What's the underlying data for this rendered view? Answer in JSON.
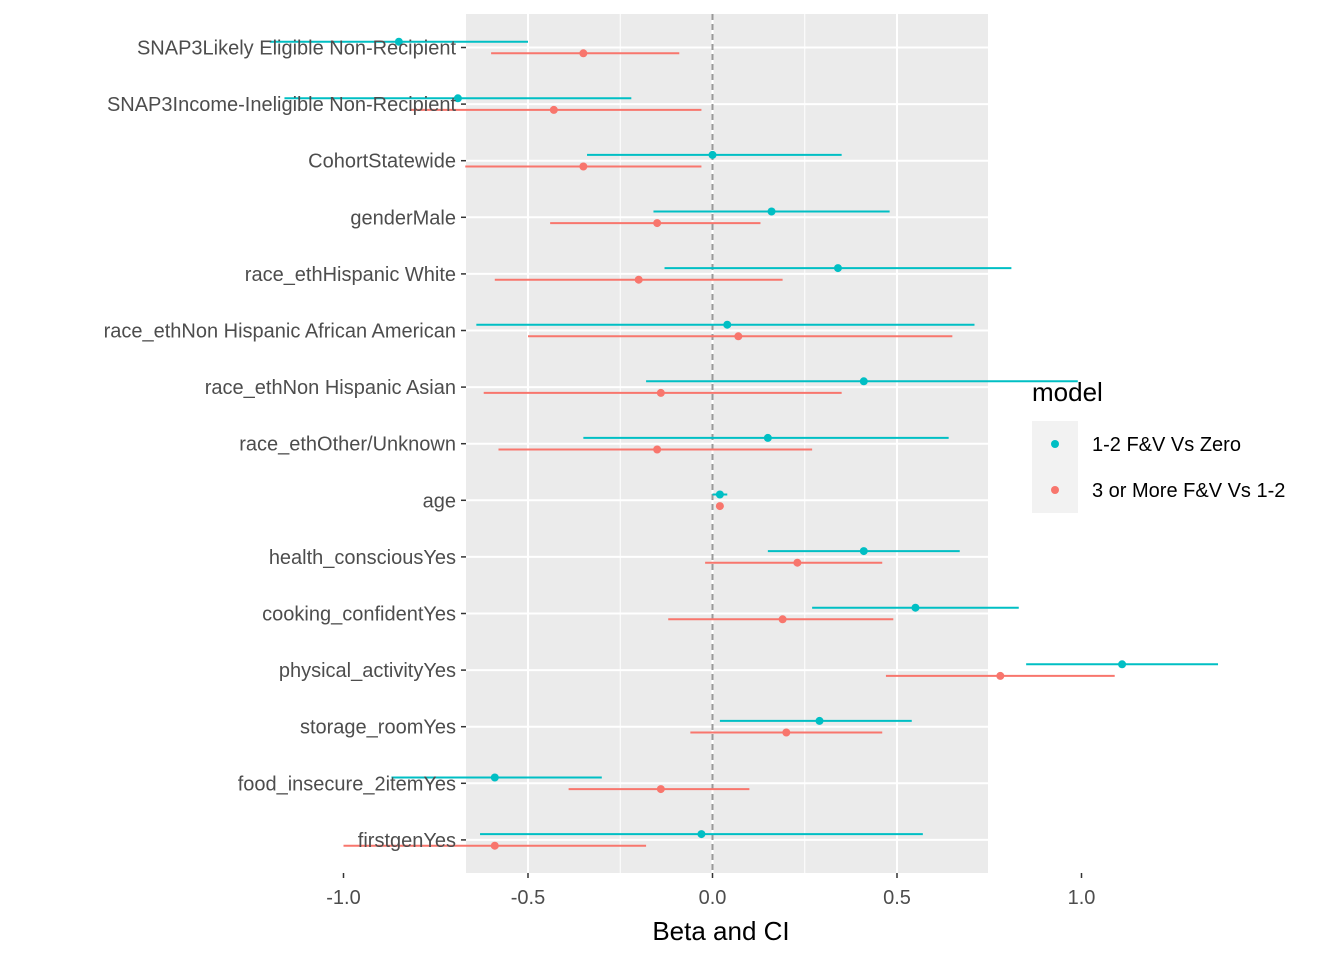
{
  "chart_data": {
    "type": "scatter",
    "xlabel": "Beta and CI",
    "ylabel": "",
    "xlim": [
      -1.33,
      1.48
    ],
    "x_ticks": [
      -1.0,
      -0.5,
      0.0,
      0.5,
      1.0
    ],
    "x_tick_labels": [
      "-1.0",
      "-0.5",
      "0.0",
      "0.5",
      "1.0"
    ],
    "reference_line": {
      "x": 0,
      "style": "dashed",
      "color": "#999999"
    },
    "grid": true,
    "panel_background": "#ebebeb",
    "categories": [
      "SNAP3Likely Eligible Non-Recipient",
      "SNAP3Income-Ineligible Non-Recipient",
      "CohortStatewide",
      "genderMale",
      "race_ethHispanic White",
      "race_ethNon Hispanic African American",
      "race_ethNon Hispanic Asian",
      "race_ethOther/Unknown",
      "age",
      "health_consciousYes",
      "cooking_confidentYes",
      "physical_activityYes",
      "storage_roomYes",
      "food_insecure_2itemYes",
      "firstgenYes"
    ],
    "legend": {
      "title": "model",
      "position": "right"
    },
    "series": [
      {
        "name": "1-2 F&V Vs Zero",
        "color": "#00bfc4",
        "estimate": [
          -0.85,
          -0.69,
          0.0,
          0.16,
          0.34,
          0.04,
          0.41,
          0.15,
          0.02,
          0.41,
          0.55,
          1.11,
          0.29,
          -0.59,
          -0.03
        ],
        "ci_low": [
          -1.2,
          -1.16,
          -0.34,
          -0.16,
          -0.13,
          -0.64,
          -0.18,
          -0.35,
          0.0,
          0.15,
          0.27,
          0.85,
          0.02,
          -0.87,
          -0.63
        ],
        "ci_high": [
          -0.5,
          -0.22,
          0.35,
          0.48,
          0.81,
          0.71,
          0.99,
          0.64,
          0.04,
          0.67,
          0.83,
          1.37,
          0.54,
          -0.3,
          0.57
        ]
      },
      {
        "name": "3 or More F&V Vs 1-2",
        "color": "#f8766d",
        "estimate": [
          -0.35,
          -0.43,
          -0.35,
          -0.15,
          -0.2,
          0.07,
          -0.14,
          -0.15,
          0.02,
          0.23,
          0.19,
          0.78,
          0.2,
          -0.14,
          -0.59
        ],
        "ci_low": [
          -0.6,
          -0.82,
          -0.67,
          -0.44,
          -0.59,
          -0.5,
          -0.62,
          -0.58,
          0.01,
          -0.02,
          -0.12,
          0.47,
          -0.06,
          -0.39,
          -1.0
        ],
        "ci_high": [
          -0.09,
          -0.03,
          -0.03,
          0.13,
          0.19,
          0.65,
          0.35,
          0.27,
          0.03,
          0.46,
          0.49,
          1.09,
          0.46,
          0.1,
          -0.18
        ]
      }
    ]
  }
}
